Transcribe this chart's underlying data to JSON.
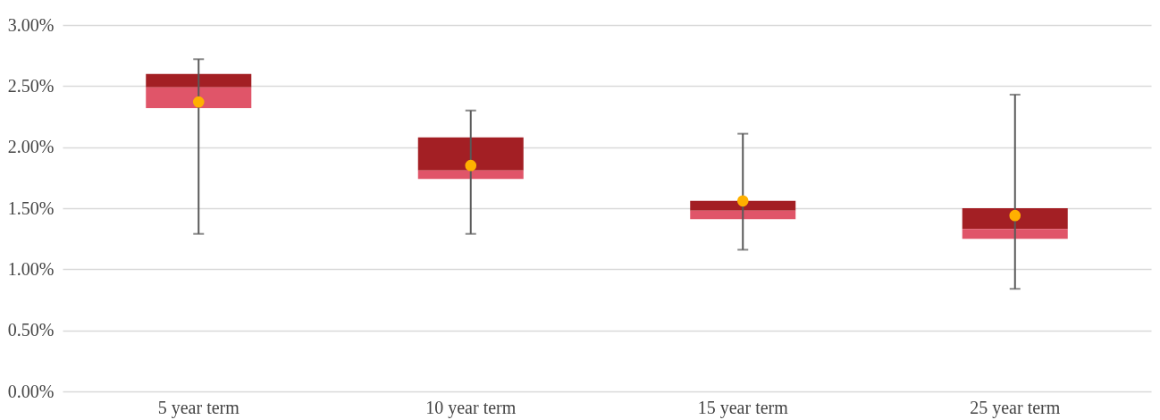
{
  "chart_data": {
    "type": "box",
    "categories": [
      "5 year term",
      "10 year term",
      "15 year term",
      "25 year term"
    ],
    "series": [
      {
        "type": "box",
        "colors": [
          [
            "#e05569",
            "#a31f24"
          ],
          [
            "#e05569",
            "#a31f24"
          ],
          [
            "#e05569",
            "#a31f24"
          ],
          [
            "#e05569",
            "#a31f24"
          ]
        ],
        "boxes": [
          {
            "low": 1.29,
            "q1": 2.32,
            "median": 2.49,
            "q3": 2.6,
            "high": 2.72
          },
          {
            "low": 1.29,
            "q1": 1.74,
            "median": 1.81,
            "q3": 2.08,
            "high": 2.3
          },
          {
            "low": 1.16,
            "q1": 1.41,
            "median": 1.48,
            "q3": 1.56,
            "high": 2.11
          },
          {
            "low": 0.84,
            "q1": 1.25,
            "median": 1.33,
            "q3": 1.5,
            "high": 2.43
          }
        ]
      },
      {
        "type": "scatter",
        "color": "#ffb000",
        "x": [
          "5 year term",
          "10 year term",
          "15 year term",
          "25 year term"
        ],
        "values": [
          2.37,
          1.85,
          1.56,
          1.44
        ]
      }
    ],
    "ylim": [
      0,
      3
    ],
    "yticks": [
      {
        "value": 0,
        "label": "0.00%"
      },
      {
        "value": 0.5,
        "label": "0.50%"
      },
      {
        "value": 1,
        "label": "1.00%"
      },
      {
        "value": 1.5,
        "label": "1.50%"
      },
      {
        "value": 2,
        "label": "2.00%"
      },
      {
        "value": 2.5,
        "label": "2.50%"
      },
      {
        "value": 3,
        "label": "3.00%"
      }
    ],
    "grid": "y",
    "marker": "circle"
  }
}
